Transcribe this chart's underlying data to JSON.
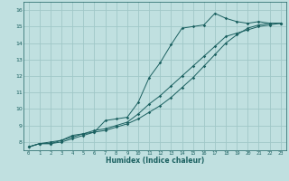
{
  "xlabel": "Humidex (Indice chaleur)",
  "bg_color": "#c0e0e0",
  "grid_color": "#a0c8c8",
  "line_color": "#1a6060",
  "xlim": [
    -0.5,
    23.5
  ],
  "ylim": [
    7.5,
    16.5
  ],
  "xticks": [
    0,
    1,
    2,
    3,
    4,
    5,
    6,
    7,
    8,
    9,
    10,
    11,
    12,
    13,
    14,
    15,
    16,
    17,
    18,
    19,
    20,
    21,
    22,
    23
  ],
  "yticks": [
    8,
    9,
    10,
    11,
    12,
    13,
    14,
    15,
    16
  ],
  "line1_x": [
    0,
    1,
    2,
    3,
    4,
    5,
    6,
    7,
    8,
    9,
    10,
    11,
    12,
    13,
    14,
    15,
    16,
    17,
    18,
    19,
    20,
    21,
    22,
    23
  ],
  "line1_y": [
    7.7,
    7.9,
    8.0,
    8.1,
    8.4,
    8.5,
    8.6,
    9.3,
    9.4,
    9.5,
    10.4,
    11.9,
    12.8,
    13.9,
    14.9,
    15.0,
    15.1,
    15.8,
    15.5,
    15.3,
    15.2,
    15.3,
    15.2,
    15.2
  ],
  "line2_x": [
    0,
    1,
    2,
    3,
    4,
    5,
    6,
    7,
    8,
    9,
    10,
    11,
    12,
    13,
    14,
    15,
    16,
    17,
    18,
    19,
    20,
    21,
    22,
    23
  ],
  "line2_y": [
    7.7,
    7.9,
    7.9,
    8.1,
    8.3,
    8.5,
    8.7,
    8.8,
    9.0,
    9.2,
    9.7,
    10.3,
    10.8,
    11.4,
    12.0,
    12.6,
    13.2,
    13.8,
    14.4,
    14.6,
    14.8,
    15.0,
    15.1,
    15.2
  ],
  "line3_x": [
    0,
    1,
    2,
    3,
    4,
    5,
    6,
    7,
    8,
    9,
    10,
    11,
    12,
    13,
    14,
    15,
    16,
    17,
    18,
    19,
    20,
    21,
    22,
    23
  ],
  "line3_y": [
    7.7,
    7.9,
    7.9,
    8.0,
    8.2,
    8.4,
    8.6,
    8.7,
    8.9,
    9.1,
    9.4,
    9.8,
    10.2,
    10.7,
    11.3,
    11.9,
    12.6,
    13.3,
    14.0,
    14.5,
    14.9,
    15.1,
    15.2,
    15.2
  ]
}
